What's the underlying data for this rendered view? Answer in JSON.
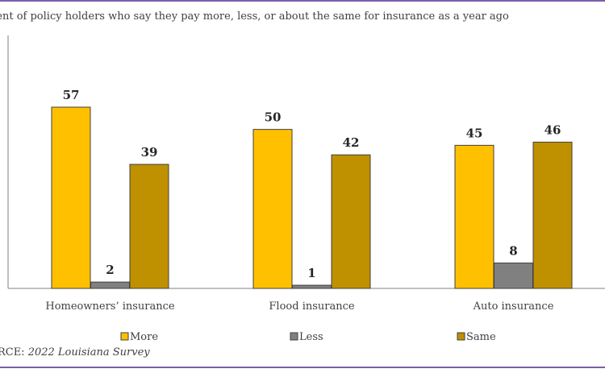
{
  "subtitle": "cent of policy holders who say they pay more, less, or about the same for insurance as a year ago",
  "source": {
    "prefix": "URCE: ",
    "name": "2022 Louisiana Survey"
  },
  "colors": {
    "more": "#FFC000",
    "less": "#808080",
    "same": "#BF9000",
    "rule": "#7A5EA8"
  },
  "chart_data": {
    "type": "bar",
    "categories": [
      "Homeowners’ insurance",
      "Flood insurance",
      "Auto insurance"
    ],
    "series": [
      {
        "name": "More",
        "values": [
          57,
          50,
          45
        ]
      },
      {
        "name": "Less",
        "values": [
          2,
          1,
          8
        ]
      },
      {
        "name": "Same",
        "values": [
          39,
          42,
          46
        ]
      }
    ],
    "ylim": [
      0,
      80
    ],
    "grid": false,
    "legend_position": "bottom",
    "data_labels": true
  }
}
